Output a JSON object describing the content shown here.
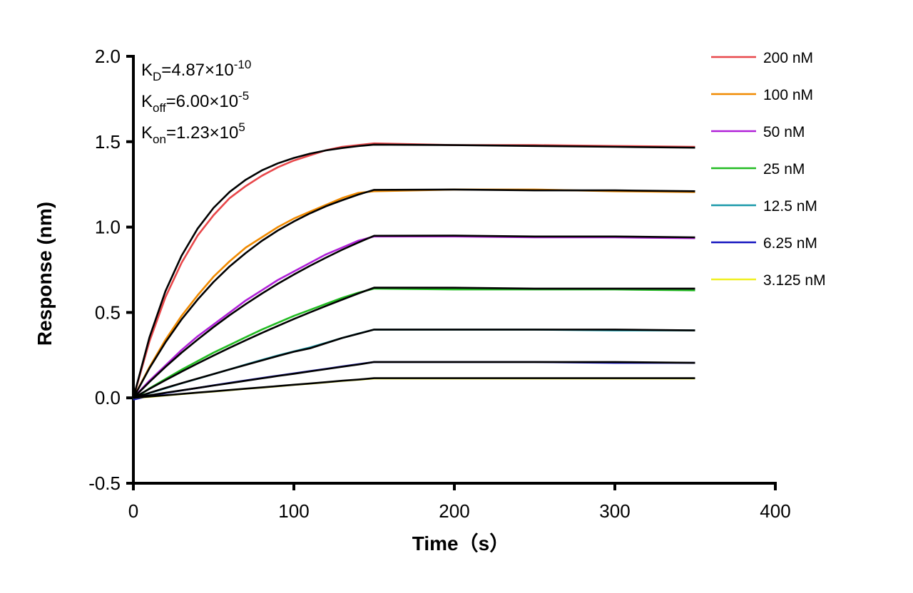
{
  "chart_data": {
    "type": "line",
    "x_label": "Time（s）",
    "y_label": "Response (nm)",
    "annotations": [
      {
        "base": "K",
        "sub": "D",
        "text": "=4.87×10",
        "sup": "-10"
      },
      {
        "base": "K",
        "sub": "off",
        "text": "=6.00×10",
        "sup": "-5"
      },
      {
        "base": "K",
        "sub": "on",
        "text": "=1.23×10",
        "sup": "5"
      }
    ],
    "x": [
      0,
      10,
      20,
      30,
      40,
      50,
      60,
      70,
      80,
      90,
      100,
      110,
      120,
      130,
      140,
      150,
      200,
      250,
      300,
      350
    ],
    "xlim": [
      0,
      400
    ],
    "xticks": [
      0,
      100,
      200,
      300,
      400
    ],
    "ylim": [
      -0.5,
      2.0
    ],
    "yticks": [
      -0.5,
      {
        "value": 0,
        "label": "0.0"
      },
      0.5,
      {
        "value": 1,
        "label": "1.0"
      },
      1.5,
      {
        "value": 2,
        "label": "2.0"
      }
    ],
    "series": [
      {
        "name": "200 nM",
        "color": "#e8474a",
        "values": [
          0,
          0.33,
          0.59,
          0.79,
          0.95,
          1.07,
          1.17,
          1.24,
          1.3,
          1.35,
          1.39,
          1.42,
          1.45,
          1.47,
          1.48,
          1.49,
          1.48,
          1.48,
          1.475,
          1.47
        ]
      },
      {
        "name": "100 nM",
        "color": "#f08a00",
        "values": [
          0,
          0.18,
          0.34,
          0.48,
          0.6,
          0.71,
          0.8,
          0.88,
          0.94,
          1.0,
          1.05,
          1.09,
          1.13,
          1.17,
          1.2,
          1.21,
          1.22,
          1.22,
          1.21,
          1.205
        ]
      },
      {
        "name": "50 nM",
        "color": "#b020d8",
        "values": [
          0,
          0.1,
          0.19,
          0.28,
          0.36,
          0.43,
          0.5,
          0.57,
          0.63,
          0.69,
          0.74,
          0.79,
          0.84,
          0.88,
          0.92,
          0.945,
          0.945,
          0.94,
          0.94,
          0.935
        ]
      },
      {
        "name": "25 nM",
        "color": "#22bb22",
        "values": [
          -0.01,
          0.055,
          0.11,
          0.165,
          0.215,
          0.265,
          0.31,
          0.355,
          0.4,
          0.44,
          0.48,
          0.515,
          0.55,
          0.585,
          0.615,
          0.64,
          0.635,
          0.635,
          0.635,
          0.63
        ]
      },
      {
        "name": "12.5 nM",
        "color": "#1a9aaa",
        "values": [
          -0.01,
          0.028,
          0.056,
          0.085,
          0.112,
          0.14,
          0.167,
          0.195,
          0.222,
          0.248,
          0.272,
          0.295,
          0.322,
          0.35,
          0.376,
          0.4,
          0.4,
          0.4,
          0.395,
          0.395
        ]
      },
      {
        "name": "6.25 nM",
        "color": "#1515c0",
        "values": [
          -0.01,
          0.012,
          0.028,
          0.043,
          0.058,
          0.073,
          0.088,
          0.102,
          0.116,
          0.13,
          0.143,
          0.157,
          0.17,
          0.184,
          0.197,
          0.21,
          0.21,
          0.21,
          0.205,
          0.205
        ]
      },
      {
        "name": "3.125 nM",
        "color": "#f0f020",
        "values": [
          0,
          0.006,
          0.014,
          0.022,
          0.03,
          0.037,
          0.045,
          0.053,
          0.06,
          0.068,
          0.076,
          0.083,
          0.091,
          0.099,
          0.106,
          0.113,
          0.113,
          0.113,
          0.113,
          0.113
        ]
      }
    ],
    "fit_series": [
      {
        "color": "#000000",
        "values": [
          0,
          0.354,
          0.625,
          0.832,
          0.991,
          1.113,
          1.206,
          1.277,
          1.332,
          1.373,
          1.405,
          1.43,
          1.449,
          1.463,
          1.474,
          1.483,
          1.48,
          1.475,
          1.47,
          1.465
        ]
      },
      {
        "color": "#000000",
        "values": [
          0,
          0.173,
          0.325,
          0.459,
          0.575,
          0.679,
          0.77,
          0.848,
          0.919,
          0.98,
          1.033,
          1.08,
          1.122,
          1.157,
          1.19,
          1.218,
          1.22,
          1.215,
          1.215,
          1.21
        ]
      },
      {
        "color": "#000000",
        "values": [
          0,
          0.093,
          0.181,
          0.264,
          0.341,
          0.415,
          0.484,
          0.549,
          0.61,
          0.668,
          0.722,
          0.773,
          0.821,
          0.867,
          0.909,
          0.949,
          0.95,
          0.945,
          0.945,
          0.94
        ]
      },
      {
        "color": "#000000",
        "values": [
          0,
          0.0526,
          0.1037,
          0.1532,
          0.2013,
          0.248,
          0.2932,
          0.3371,
          0.3799,
          0.4212,
          0.4614,
          0.5004,
          0.5381,
          0.5748,
          0.6105,
          0.6451,
          0.645,
          0.64,
          0.64,
          0.64
        ]
      },
      {
        "color": "#000000",
        "values": [
          0,
          0.029,
          0.058,
          0.086,
          0.113,
          0.14,
          0.167,
          0.193,
          0.219,
          0.245,
          0.27,
          0.29,
          0.32,
          0.35,
          0.375,
          0.4,
          0.4,
          0.4,
          0.4,
          0.395
        ]
      },
      {
        "color": "#000000",
        "values": [
          0,
          0.015,
          0.03,
          0.044,
          0.058,
          0.072,
          0.086,
          0.1,
          0.114,
          0.128,
          0.141,
          0.155,
          0.168,
          0.182,
          0.195,
          0.21,
          0.21,
          0.21,
          0.21,
          0.205
        ]
      },
      {
        "color": "#000000",
        "values": [
          0,
          0.008,
          0.015,
          0.023,
          0.031,
          0.038,
          0.046,
          0.054,
          0.061,
          0.069,
          0.077,
          0.084,
          0.092,
          0.1,
          0.107,
          0.115,
          0.115,
          0.115,
          0.115,
          0.115
        ]
      }
    ]
  }
}
